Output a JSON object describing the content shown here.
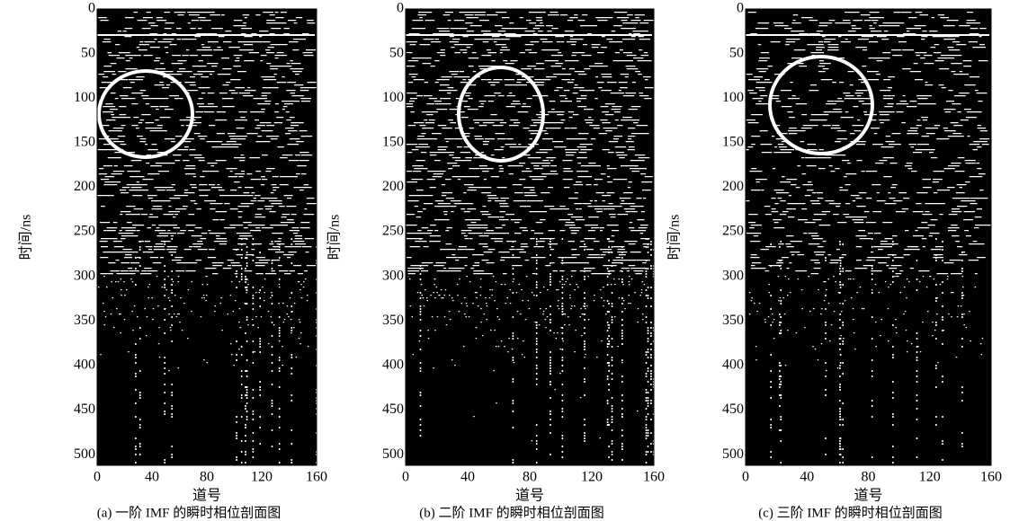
{
  "chart_data": [
    {
      "type": "image",
      "xlabel": "道号",
      "ylabel": "时间/ns",
      "caption": "(a) 一阶 IMF 的瞬时相位剖面图",
      "xlim": [
        0,
        160
      ],
      "ylim": [
        0,
        512
      ],
      "xticks": [
        0,
        40,
        80,
        120,
        160
      ],
      "yticks": [
        0,
        50,
        100,
        150,
        200,
        250,
        300,
        350,
        400,
        450,
        500
      ],
      "y_inverted": true
    },
    {
      "type": "image",
      "xlabel": "道号",
      "ylabel": "时间/ns",
      "caption": "(b) 二阶 IMF 的瞬时相位剖面图",
      "xlim": [
        0,
        160
      ],
      "ylim": [
        0,
        512
      ],
      "xticks": [
        0,
        40,
        80,
        120,
        160
      ],
      "yticks": [
        0,
        50,
        100,
        150,
        200,
        250,
        300,
        350,
        400,
        450,
        500
      ],
      "y_inverted": true
    },
    {
      "type": "image",
      "xlabel": "道号",
      "ylabel": "时间/ns",
      "caption": "(c) 三阶 IMF 的瞬时相位剖面图",
      "xlim": [
        0,
        160
      ],
      "ylim": [
        0,
        512
      ],
      "xticks": [
        0,
        40,
        80,
        120,
        160
      ],
      "yticks": [
        0,
        50,
        100,
        150,
        200,
        250,
        300,
        350,
        400,
        450,
        500
      ],
      "y_inverted": true
    }
  ]
}
